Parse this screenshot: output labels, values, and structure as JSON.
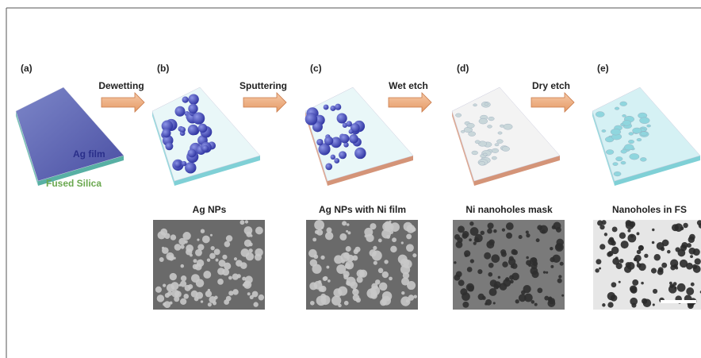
{
  "panels": [
    {
      "label": "(a)",
      "film": "Ag film",
      "substrate": "Fused Silica"
    },
    {
      "label": "(b)",
      "caption": "Ag NPs"
    },
    {
      "label": "(c)",
      "caption": "Ag NPs with Ni film"
    },
    {
      "label": "(d)",
      "caption": "Ni nanoholes mask"
    },
    {
      "label": "(e)",
      "caption": "Nanoholes in FS"
    }
  ],
  "steps": [
    "Dewetting",
    "Sputtering",
    "Wet etch",
    "Dry etch"
  ]
}
